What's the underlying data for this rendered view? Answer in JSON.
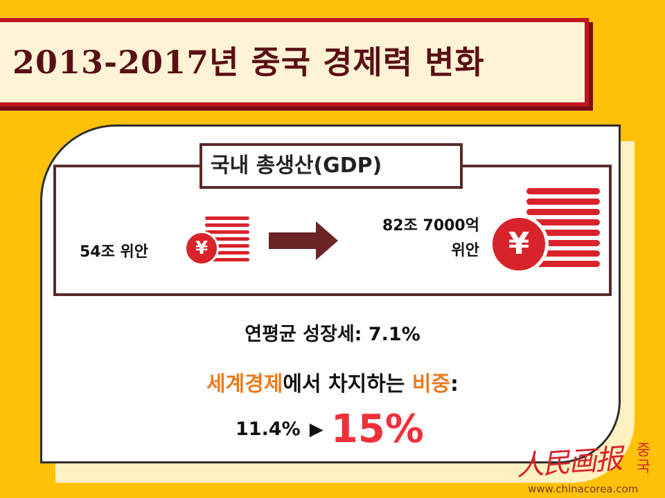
{
  "title": "2013-2017년 중국 경제력 변화",
  "gdp": {
    "label": "국내 총생산(GDP)",
    "from_value": "54조 위안",
    "to_value_line1": "82조 7000억",
    "to_value_line2": "위안"
  },
  "coin_symbol": "¥",
  "growth": "연평균 성장세: 7.1%",
  "share": {
    "highlight1": "세계경제",
    "middle": "에서 차지하는 ",
    "highlight2": "비중",
    "suffix": ":"
  },
  "percent": {
    "from": "11.4%",
    "arrow": "▶",
    "to": "15%"
  },
  "logo": {
    "brand": "人民画报",
    "side": "중국",
    "website": "www.chinacorea.com"
  },
  "colors": {
    "background": "#FFC107",
    "title_border": "#C0151C",
    "coin_red": "#D8232A",
    "highlight_orange": "#EE7A1C",
    "highlight_red": "#F0303A",
    "dark_brown": "#5A2A2A"
  },
  "icons": [
    "yuan-coin-icon",
    "coin-stack-icon",
    "right-arrow-icon"
  ]
}
